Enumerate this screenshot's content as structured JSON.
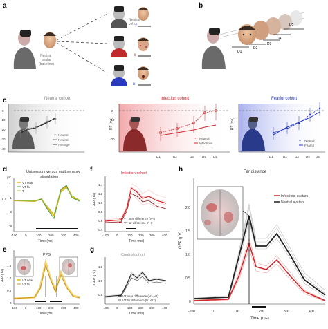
{
  "panels": {
    "a": {
      "letter": "a",
      "baseline_label": [
        "Neutral",
        "avatar",
        "(baseline)"
      ],
      "neutral_label": [
        "Neutral",
        "cohort"
      ],
      "i_label": "i",
      "ii_label": "ii",
      "iii_label": "iii"
    },
    "b": {
      "letter": "b",
      "distances": [
        "D1",
        "D2",
        "D3",
        "D4",
        "D5"
      ]
    },
    "c": {
      "letter": "c",
      "titles": [
        "Neutral cohort",
        "Infection cohort",
        "Fearful cohort"
      ],
      "ylabel": "RT (ms)",
      "yticks": [
        "10",
        "0",
        "-10",
        "-20",
        "-30",
        "-40"
      ],
      "xticks": [
        "D1",
        "D2",
        "D3",
        "D4",
        "D5"
      ],
      "legend_neutral": [
        "Neutral",
        "Neutral",
        "Average"
      ],
      "legend_infection": [
        "Neutral",
        "Infectious"
      ],
      "legend_fearful": [
        "Neutral",
        "Fearful"
      ]
    },
    "d": {
      "letter": "d",
      "title": [
        "Unisensory versus multisensory",
        "stimulation"
      ],
      "ylabel": "Cz",
      "unit": "μV",
      "yticks": [
        "2",
        "1",
        "0",
        "-1",
        "-2",
        "-3",
        "-4",
        "-5"
      ],
      "xticks": [
        "-100",
        "0",
        "100",
        "200",
        "300",
        "400"
      ],
      "xlabel": "Time (ms)",
      "legend": [
        "VT near",
        "VT far",
        "T"
      ]
    },
    "e": {
      "letter": "e",
      "title": "PPS",
      "ylabel": "GFP (μV)",
      "yticks": [
        "1.5",
        "1.0",
        "0.5",
        "0"
      ],
      "xticks": [
        "-100",
        "0",
        "100",
        "200",
        "300",
        "400"
      ],
      "xlabel": "Time (ms)",
      "legend": [
        "VT near",
        "VT far"
      ]
    },
    "f": {
      "letter": "f",
      "title": "Infection cohort",
      "ylabel": "GFP (μV)",
      "yticks": [
        "1.4",
        "1.2",
        "1.0",
        "0.8",
        "0.6",
        "0.4"
      ],
      "xticks": [
        "-100",
        "0",
        "100",
        "200",
        "300",
        "400"
      ],
      "xlabel": "Time (ms)",
      "legend": [
        "VT near difference (N-I)",
        "VT far difference (N-I)"
      ]
    },
    "g": {
      "letter": "g",
      "title": "Control cohort",
      "ylabel": "GFP (μV)",
      "yticks": [
        "1.5",
        "1.0",
        "0.5"
      ],
      "xticks": [
        "-100",
        "0",
        "100",
        "200",
        "300",
        "400"
      ],
      "xlabel": "Time (ms)",
      "legend": [
        "VT near difference (N1-N2)",
        "VT far difference (N1-N2)"
      ]
    },
    "h": {
      "letter": "h",
      "title": "Far distance",
      "ylabel": "GFP (μV)",
      "yticks": [
        "2.0",
        "1.5",
        "1.0",
        "0.5",
        "0"
      ],
      "xticks": [
        "-100",
        "0",
        "100",
        "200",
        "300",
        "400"
      ],
      "xlabel": "Time (ms)",
      "legend": [
        "Infectious avatars",
        "Neutral avatars"
      ]
    }
  },
  "colors": {
    "neutral": "#555555",
    "infection": "#d0282e",
    "fearful": "#2b3bbf",
    "yellow": "#e8b51a",
    "green": "#4a9a3a",
    "pink_bg": "#f6c9cb",
    "blue_bg": "#c6cbf2",
    "grey_bg": "#d8d8d8"
  }
}
